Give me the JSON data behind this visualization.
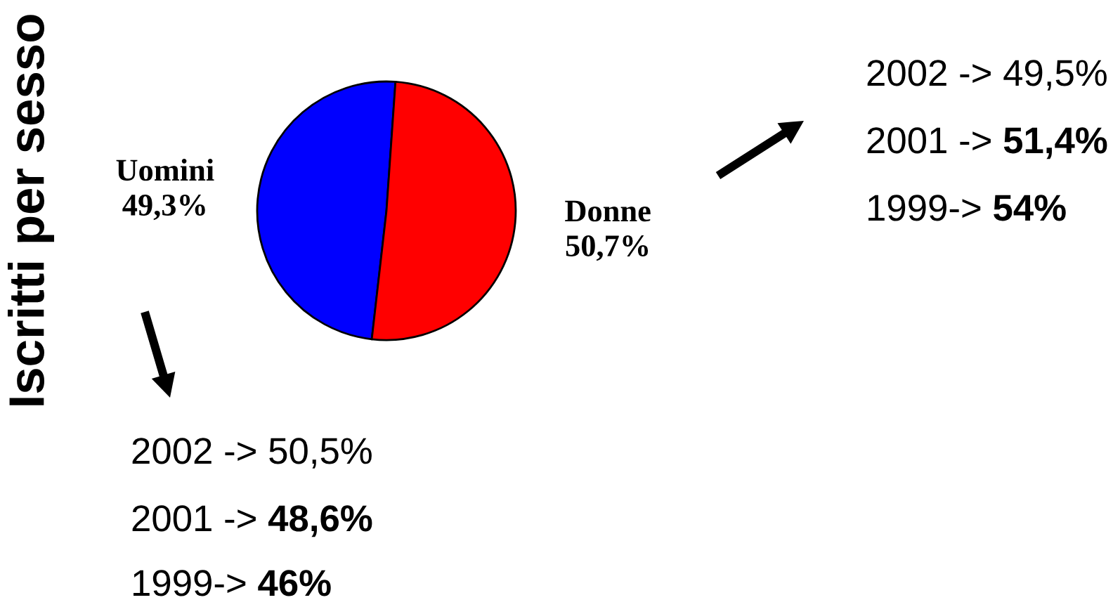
{
  "chart_data": {
    "type": "pie",
    "title": "Iscritti per sesso",
    "categories": [
      "Uomini",
      "Donne"
    ],
    "values": [
      49.3,
      50.7
    ],
    "colors": [
      "#0000ff",
      "#ff0000"
    ],
    "value_labels": [
      "49,3%",
      "50,7%"
    ],
    "annotations": [
      "2002 -> 49,5%",
      "2001 ->",
      "51,4%",
      "1999->",
      "54%",
      "2002 -> 50,5%",
      "2001 ->",
      "48,6%",
      "1999->",
      "46%"
    ]
  }
}
